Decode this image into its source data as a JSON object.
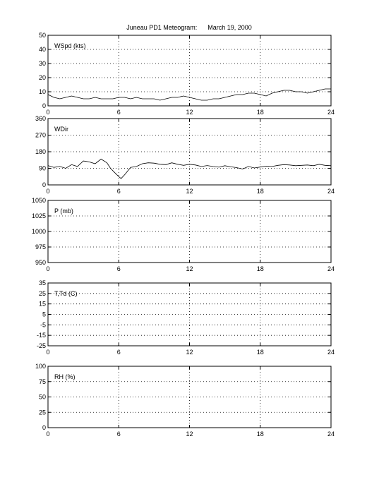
{
  "figure": {
    "title": "Juneau PD1 Meteogram:      March 19, 2000"
  },
  "chart_data": [
    {
      "type": "line",
      "label": "WSpd (kts)",
      "xlim": [
        0,
        24
      ],
      "xticks": [
        0,
        6,
        12,
        18,
        24
      ],
      "ylim": [
        0,
        50
      ],
      "yticks": [
        0,
        10,
        20,
        30,
        40,
        50
      ],
      "grid": true,
      "series": [
        {
          "x": [
            0,
            0.5,
            1,
            1.5,
            2,
            2.5,
            3,
            3.5,
            4,
            4.5,
            5,
            5.5,
            6,
            6.5,
            7,
            7.5,
            8,
            8.5,
            9,
            9.5,
            10,
            10.5,
            11,
            11.5,
            12,
            12.5,
            13,
            13.5,
            14,
            14.5,
            15,
            15.5,
            16,
            16.5,
            17,
            17.5,
            18,
            18.5,
            19,
            19.5,
            20,
            20.5,
            21,
            21.5,
            22,
            22.5,
            23,
            23.5,
            24
          ],
          "y": [
            8,
            6,
            5,
            6,
            7,
            6,
            5,
            5,
            6,
            5,
            5,
            5,
            6,
            6,
            5,
            6,
            5,
            5,
            5,
            4,
            5,
            6,
            6,
            7,
            6,
            5,
            4,
            4,
            5,
            5,
            6,
            7,
            8,
            8,
            9,
            9,
            8,
            7,
            9,
            10,
            11,
            11,
            10,
            10,
            9,
            10,
            11,
            12,
            12
          ]
        }
      ]
    },
    {
      "type": "line",
      "label": "WDir",
      "xlim": [
        0,
        24
      ],
      "xticks": [
        0,
        6,
        12,
        18,
        24
      ],
      "ylim": [
        0,
        360
      ],
      "yticks": [
        0,
        90,
        180,
        270,
        360
      ],
      "grid": true,
      "series": [
        {
          "x": [
            0,
            0.5,
            1,
            1.5,
            2,
            2.5,
            3,
            3.5,
            4,
            4.5,
            5,
            5.3,
            5.6,
            6,
            6.2,
            6.5,
            7,
            7.5,
            8,
            8.5,
            9,
            9.5,
            10,
            10.5,
            11,
            11.5,
            12,
            12.5,
            13,
            13.5,
            14,
            14.5,
            15,
            15.5,
            16,
            16.5,
            17,
            17.5,
            18,
            18.5,
            19,
            19.5,
            20,
            20.5,
            21,
            21.5,
            22,
            22.5,
            23,
            23.5,
            24
          ],
          "y": [
            105,
            95,
            100,
            90,
            110,
            100,
            130,
            125,
            115,
            140,
            120,
            90,
            70,
            45,
            35,
            55,
            95,
            100,
            115,
            120,
            118,
            112,
            110,
            120,
            112,
            106,
            112,
            108,
            100,
            105,
            100,
            96,
            104,
            98,
            94,
            86,
            100,
            92,
            97,
            102,
            100,
            106,
            110,
            108,
            104,
            106,
            108,
            104,
            112,
            106,
            104
          ]
        }
      ]
    },
    {
      "type": "line",
      "label": "P (mb)",
      "xlim": [
        0,
        24
      ],
      "xticks": [
        0,
        6,
        12,
        18,
        24
      ],
      "ylim": [
        950,
        1050
      ],
      "yticks": [
        950,
        975,
        1000,
        1025,
        1050
      ],
      "grid": true,
      "series": []
    },
    {
      "type": "line",
      "label": "T,Td (C)",
      "xlim": [
        0,
        24
      ],
      "xticks": [
        0,
        6,
        12,
        18,
        24
      ],
      "ylim": [
        -25,
        35
      ],
      "yticks": [
        -25,
        -15,
        -5,
        5,
        15,
        25,
        35
      ],
      "grid": true,
      "series": []
    },
    {
      "type": "line",
      "label": "RH (%)",
      "xlim": [
        0,
        24
      ],
      "xticks": [
        0,
        6,
        12,
        18,
        24
      ],
      "ylim": [
        0,
        100
      ],
      "yticks": [
        0,
        25,
        50,
        75,
        100
      ],
      "grid": true,
      "series": []
    }
  ]
}
